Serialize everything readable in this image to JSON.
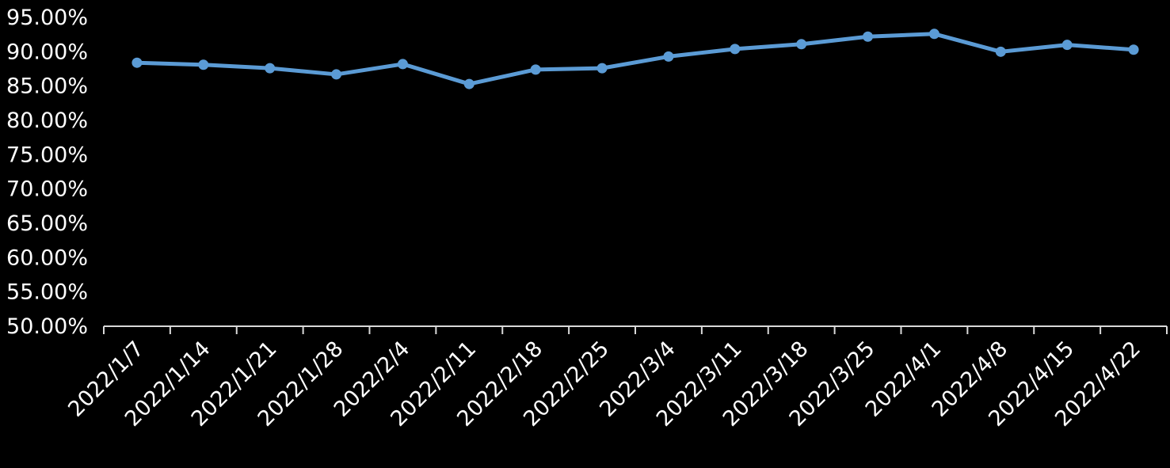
{
  "chart_data": {
    "type": "line",
    "categories": [
      "2022/1/7",
      "2022/1/14",
      "2022/1/21",
      "2022/1/28",
      "2022/2/4",
      "2022/2/11",
      "2022/2/18",
      "2022/2/25",
      "2022/3/4",
      "2022/3/11",
      "2022/3/18",
      "2022/3/25",
      "2022/4/1",
      "2022/4/8",
      "2022/4/15",
      "2022/4/22"
    ],
    "series": [
      {
        "color": "#5b9bd5",
        "values": [
          0.884,
          0.881,
          0.876,
          0.867,
          0.882,
          0.853,
          0.874,
          0.876,
          0.893,
          0.904,
          0.911,
          0.922,
          0.926,
          0.9,
          0.91,
          0.903
        ]
      }
    ],
    "ylim": [
      0.5,
      0.95
    ],
    "yticks": [
      0.5,
      0.55,
      0.6,
      0.65,
      0.7,
      0.75,
      0.8,
      0.85,
      0.9,
      0.95
    ],
    "ytick_labels": [
      "50.00%",
      "55.00%",
      "60.00%",
      "65.00%",
      "70.00%",
      "75.00%",
      "80.00%",
      "85.00%",
      "90.00%",
      "95.00%"
    ],
    "title": "",
    "xlabel": "",
    "ylabel": "",
    "grid": false,
    "legend": "none",
    "background": "#000000",
    "axis_color": "#d9d9d9",
    "text_color": "#ffffff"
  }
}
